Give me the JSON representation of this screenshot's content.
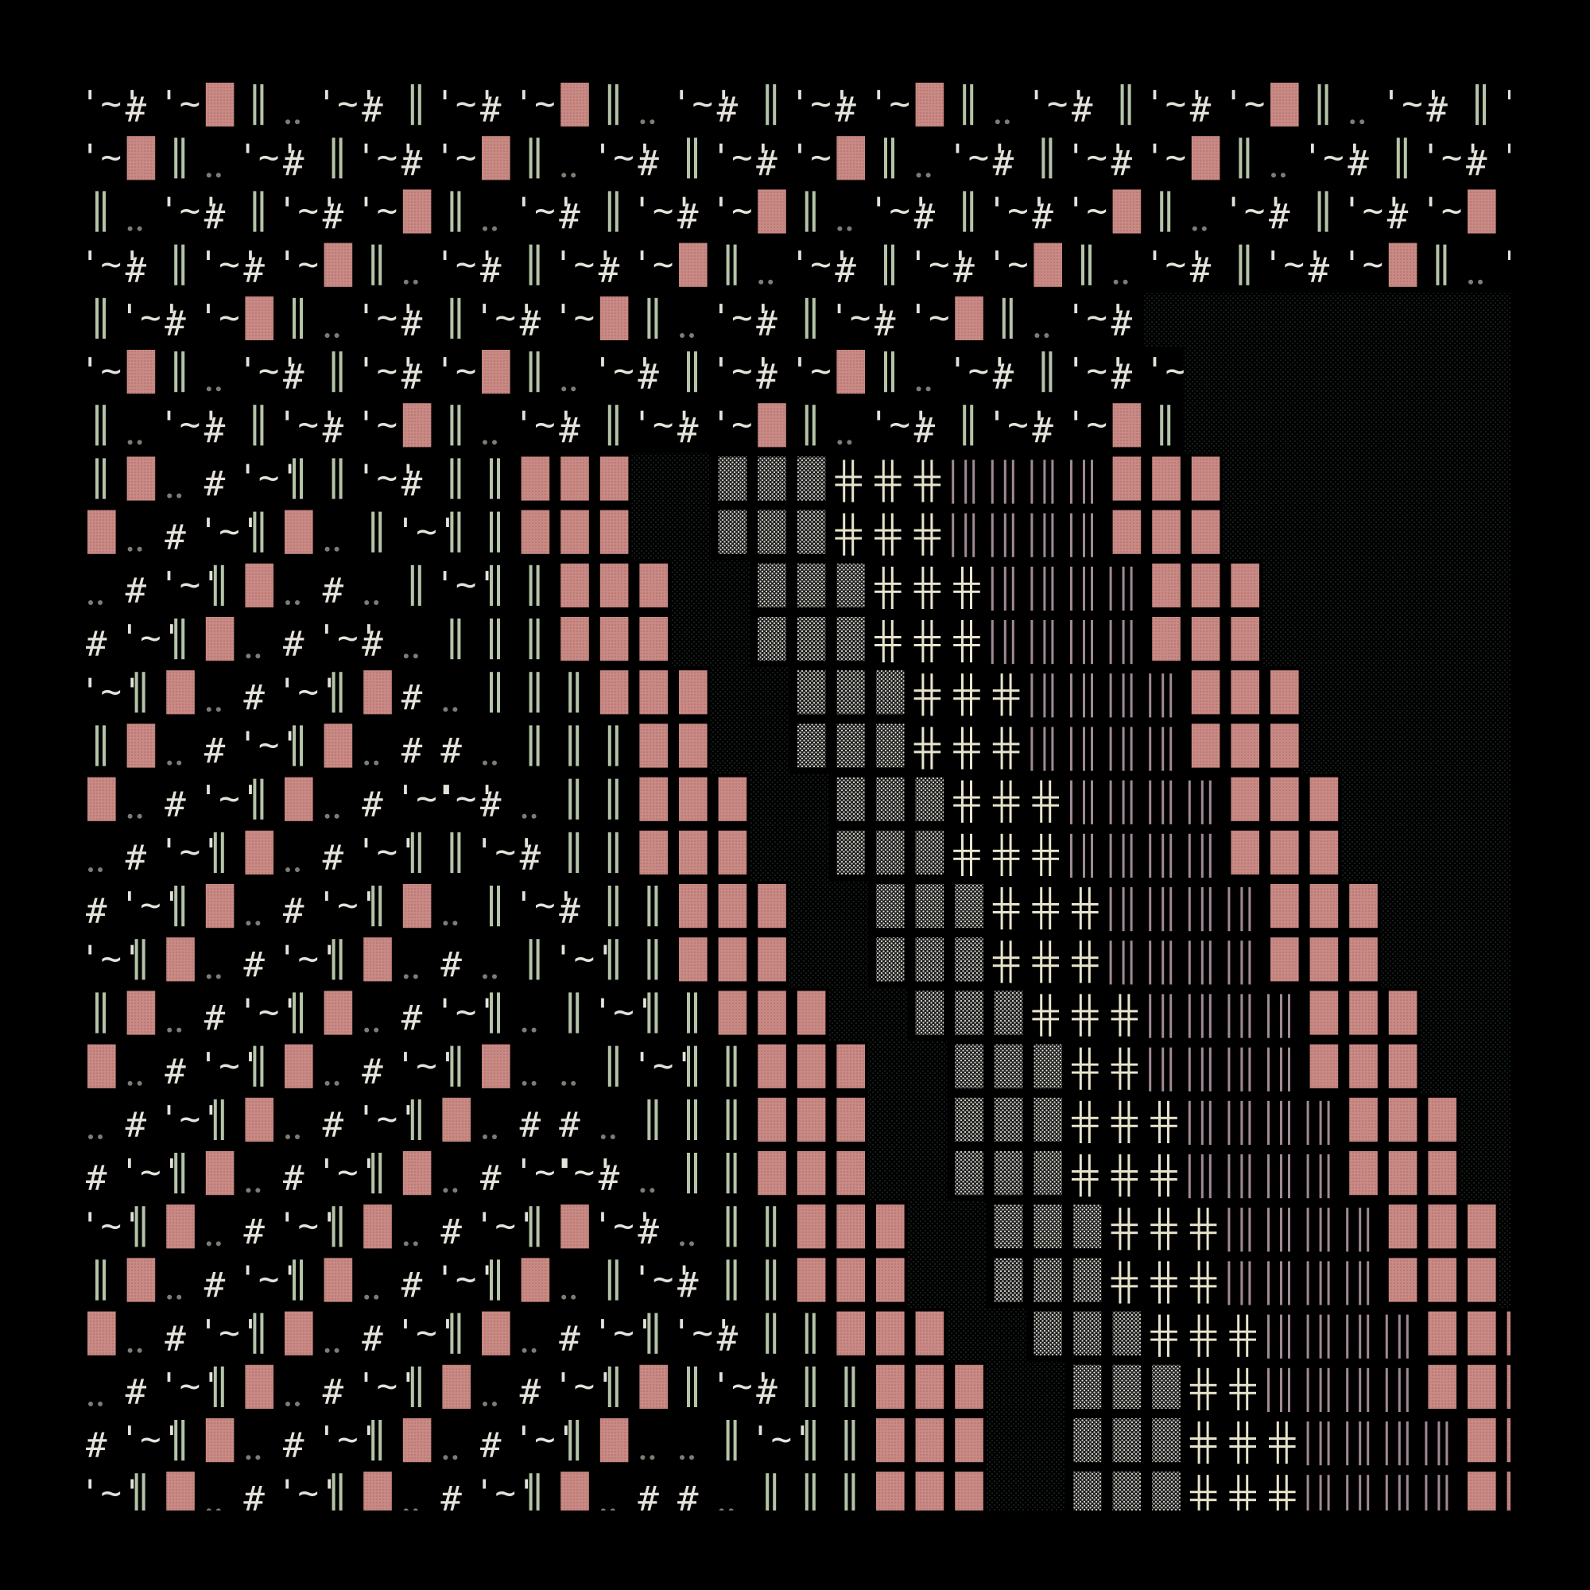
{
  "artwork": {
    "description_visible": "",
    "palette": {
      "background": "#000000",
      "rose_block": "#c98984",
      "rose_block_dot": "#a86a66",
      "sage": "#b4c4a8",
      "cream": "#e8e4cc",
      "mauve": "#a08a96",
      "dark_green": "#16201a",
      "gray_dots": "#7a7e74",
      "stipple": "#d8d8d0",
      "hash": "#e4e2da",
      "wave": "#e4e2da"
    },
    "glyph_legend": {
      "hash": "#",
      "wave": "'~'",
      "double_bar": "║",
      "dots": "..",
      "block": "▓",
      "cross": "╬",
      "pipes": "|||",
      "stipple": "░"
    }
  }
}
